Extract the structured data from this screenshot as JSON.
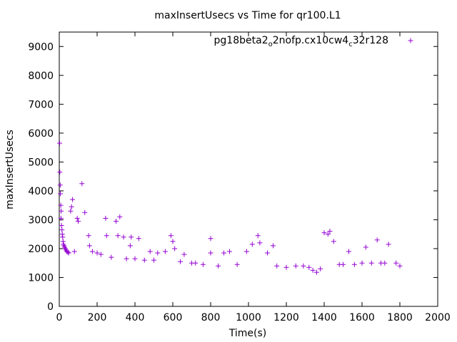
{
  "chart_data": {
    "type": "scatter",
    "title": "maxInsertUsecs vs Time for qr100.L1",
    "xlabel": "Time(s)",
    "ylabel": "maxInsertUsecs",
    "xlim": [
      0,
      2000
    ],
    "ylim": [
      0,
      9500
    ],
    "xticks": [
      "0",
      "200",
      "400",
      "600",
      "800",
      "1000",
      "1200",
      "1400",
      "1600",
      "1800",
      "2000"
    ],
    "yticks": [
      "0",
      "1000",
      "2000",
      "3000",
      "4000",
      "5000",
      "6000",
      "7000",
      "8000",
      "9000"
    ],
    "grid": false,
    "legend_position": "top-right",
    "colors": {
      "series": "#9400d3"
    },
    "legend": {
      "base": "pg18beta2",
      "sub1": "o",
      "mid": "2nofp.cx10cw4",
      "sub2": "c",
      "tail": "32r128"
    },
    "series": [
      {
        "name": "pg18beta2_o2nofp.cx10cw4_c32r128",
        "marker": "+",
        "points": [
          [
            2,
            5650
          ],
          [
            3,
            4650
          ],
          [
            5,
            4200
          ],
          [
            6,
            3900
          ],
          [
            8,
            3500
          ],
          [
            9,
            3050
          ],
          [
            10,
            3300
          ],
          [
            12,
            2800
          ],
          [
            14,
            2650
          ],
          [
            16,
            2500
          ],
          [
            18,
            2400
          ],
          [
            20,
            2250
          ],
          [
            22,
            2150
          ],
          [
            25,
            2100
          ],
          [
            28,
            2050
          ],
          [
            32,
            2000
          ],
          [
            36,
            1950
          ],
          [
            40,
            1900
          ],
          [
            45,
            1880
          ],
          [
            50,
            1850
          ],
          [
            60,
            3300
          ],
          [
            65,
            3450
          ],
          [
            70,
            3700
          ],
          [
            80,
            1900
          ],
          [
            95,
            3050
          ],
          [
            100,
            2950
          ],
          [
            120,
            4250
          ],
          [
            135,
            3250
          ],
          [
            155,
            2450
          ],
          [
            160,
            2100
          ],
          [
            175,
            1900
          ],
          [
            200,
            1850
          ],
          [
            220,
            1800
          ],
          [
            245,
            3050
          ],
          [
            250,
            2450
          ],
          [
            275,
            1700
          ],
          [
            300,
            2950
          ],
          [
            310,
            2450
          ],
          [
            320,
            3100
          ],
          [
            340,
            2400
          ],
          [
            355,
            1650
          ],
          [
            375,
            2100
          ],
          [
            380,
            2400
          ],
          [
            400,
            1650
          ],
          [
            420,
            2350
          ],
          [
            450,
            1600
          ],
          [
            480,
            1900
          ],
          [
            500,
            1600
          ],
          [
            520,
            1850
          ],
          [
            560,
            1900
          ],
          [
            590,
            2450
          ],
          [
            600,
            2250
          ],
          [
            610,
            2000
          ],
          [
            640,
            1550
          ],
          [
            660,
            1800
          ],
          [
            700,
            1500
          ],
          [
            720,
            1500
          ],
          [
            760,
            1450
          ],
          [
            800,
            2350
          ],
          [
            800,
            1850
          ],
          [
            840,
            1400
          ],
          [
            870,
            1850
          ],
          [
            900,
            1900
          ],
          [
            940,
            1450
          ],
          [
            990,
            1900
          ],
          [
            1020,
            2150
          ],
          [
            1050,
            2450
          ],
          [
            1060,
            2200
          ],
          [
            1100,
            1850
          ],
          [
            1130,
            2100
          ],
          [
            1150,
            1400
          ],
          [
            1200,
            1350
          ],
          [
            1250,
            1400
          ],
          [
            1290,
            1400
          ],
          [
            1320,
            1350
          ],
          [
            1340,
            1250
          ],
          [
            1360,
            1180
          ],
          [
            1380,
            1300
          ],
          [
            1400,
            2550
          ],
          [
            1420,
            2500
          ],
          [
            1430,
            2600
          ],
          [
            1450,
            2250
          ],
          [
            1480,
            1450
          ],
          [
            1500,
            1450
          ],
          [
            1530,
            1900
          ],
          [
            1560,
            1450
          ],
          [
            1600,
            1500
          ],
          [
            1620,
            2050
          ],
          [
            1650,
            1500
          ],
          [
            1680,
            2300
          ],
          [
            1700,
            1500
          ],
          [
            1720,
            1500
          ],
          [
            1740,
            2150
          ],
          [
            1780,
            1500
          ],
          [
            1800,
            1400
          ]
        ]
      }
    ]
  }
}
